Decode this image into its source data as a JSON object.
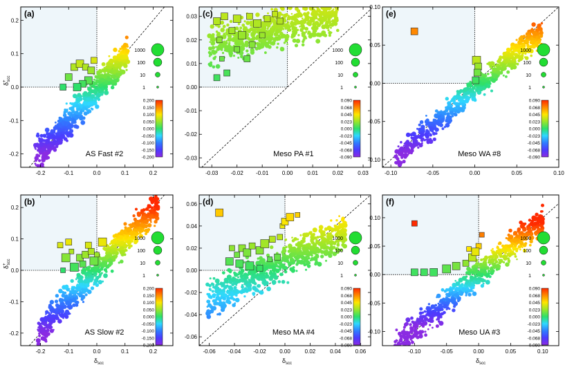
{
  "figure": {
    "axis_label_main": "δ",
    "axis_label_sub": "scc",
    "axis_label_sup_y": "+",
    "size_legend_labels": [
      "1000",
      "100",
      "10",
      "1"
    ],
    "colors": {
      "shade": "#eef6fa",
      "marker_outline": "#2a2a2a",
      "size_legend_fill": "#22dd33",
      "colorbar_stops": [
        "#8a2be2",
        "#4b3bff",
        "#2f7dff",
        "#2fd8ff",
        "#2de06a",
        "#9be62a",
        "#ffe600",
        "#ff8a00",
        "#ff2a00"
      ]
    }
  },
  "chart_data": [
    {
      "type": "scatter",
      "panel_label": "(a)",
      "name": "AS Fast #2",
      "xlim": [
        -0.27,
        0.27
      ],
      "ylim": [
        -0.24,
        0.24
      ],
      "xticks": [
        "-0.2",
        "-0.1",
        "0.0",
        "0.1",
        "0.2"
      ],
      "xtick_values": [
        -0.2,
        -0.1,
        0.0,
        0.1,
        0.2
      ],
      "yticks": [
        "-0.2",
        "-0.1",
        "0.0",
        "0.1",
        "0.2"
      ],
      "ytick_values": [
        -0.2,
        -0.1,
        0.0,
        0.1,
        0.2
      ],
      "show_xlabel": false,
      "show_ylabel": true,
      "colorbar_labels": [
        "0.200",
        "0.150",
        "0.100",
        "0.050",
        "0.000",
        "-0.050",
        "-0.100",
        "-0.150",
        "-0.200"
      ],
      "color_range": [
        -0.2,
        0.2
      ],
      "cloud": {
        "x_range": [
          -0.22,
          0.11
        ],
        "slope": 0.95,
        "intercept": -0.005,
        "spread": 0.035
      },
      "squares": [
        [
          -0.1,
          0.03
        ],
        [
          -0.08,
          0.06
        ],
        [
          -0.06,
          0.07
        ],
        [
          -0.04,
          0.06
        ],
        [
          -0.02,
          0.05
        ],
        [
          -0.01,
          0.08
        ],
        [
          -0.03,
          0.02
        ],
        [
          -0.05,
          0.01
        ],
        [
          -0.07,
          0.0
        ],
        [
          -0.12,
          -0.0
        ]
      ]
    },
    {
      "type": "scatter",
      "panel_label": "(c)",
      "name": "Meso PA #1",
      "xlim": [
        -0.035,
        0.033
      ],
      "ylim": [
        -0.034,
        0.034
      ],
      "xticks": [
        "-0.03",
        "-0.02",
        "-0.01",
        "0.00",
        "0.01",
        "0.02",
        "0.03"
      ],
      "xtick_values": [
        -0.03,
        -0.02,
        -0.01,
        0.0,
        0.01,
        0.02,
        0.03
      ],
      "yticks": [
        "-0.03",
        "-0.02",
        "-0.01",
        "0.00",
        "0.01",
        "0.02",
        "0.03"
      ],
      "ytick_values": [
        -0.03,
        -0.02,
        -0.01,
        0.0,
        0.01,
        0.02,
        0.03
      ],
      "show_xlabel": false,
      "show_ylabel": false,
      "colorbar_labels": [
        "0.090",
        "0.068",
        "0.045",
        "0.023",
        "0.000",
        "-0.023",
        "-0.045",
        "-0.068",
        "-0.090"
      ],
      "color_range": [
        -0.09,
        0.09
      ],
      "cloud": {
        "x_range": [
          -0.031,
          0.02
        ],
        "slope": 0.3,
        "intercept": 0.026,
        "spread": 0.006
      },
      "squares": [
        [
          -0.028,
          0.028
        ],
        [
          -0.025,
          0.03
        ],
        [
          -0.02,
          0.029
        ],
        [
          -0.015,
          0.03
        ],
        [
          -0.012,
          0.027
        ],
        [
          -0.008,
          0.029
        ],
        [
          -0.005,
          0.031
        ],
        [
          -0.022,
          0.024
        ],
        [
          -0.027,
          0.02
        ],
        [
          -0.026,
          0.012
        ],
        [
          -0.024,
          0.006
        ],
        [
          -0.02,
          0.016
        ],
        [
          -0.018,
          0.022
        ],
        [
          -0.014,
          0.018
        ],
        [
          -0.01,
          0.022
        ],
        [
          -0.016,
          0.012
        ],
        [
          -0.028,
          0.004
        ],
        [
          -0.003,
          0.028
        ]
      ]
    },
    {
      "type": "scatter",
      "panel_label": "(e)",
      "name": "Meso WA #8",
      "xlim": [
        -0.11,
        0.1
      ],
      "ylim": [
        -0.11,
        0.1
      ],
      "xticks": [
        "-0.10",
        "-0.05",
        "0.00",
        "0.05",
        "0.10"
      ],
      "xtick_values": [
        -0.1,
        -0.05,
        0.0,
        0.05,
        0.1
      ],
      "yticks": [
        "-0.10",
        "-0.05",
        "0.00",
        "0.05",
        "0.10"
      ],
      "ytick_values": [
        -0.1,
        -0.05,
        0.0,
        0.05,
        0.1
      ],
      "show_xlabel": false,
      "show_ylabel": false,
      "colorbar_labels": [
        "0.090",
        "0.068",
        "0.045",
        "0.023",
        "0.000",
        "-0.023",
        "-0.045",
        "-0.068",
        "-0.090"
      ],
      "color_range": [
        -0.09,
        0.09
      ],
      "cloud": {
        "x_range": [
          -0.095,
          0.08
        ],
        "slope": 0.95,
        "intercept": -0.008,
        "spread": 0.012
      },
      "squares": [
        [
          -0.072,
          0.068
        ],
        [
          0.002,
          0.03
        ],
        [
          0.004,
          0.022
        ],
        [
          0.003,
          0.014
        ],
        [
          0.001,
          0.004
        ]
      ]
    },
    {
      "type": "scatter",
      "panel_label": "(b)",
      "name": "AS Slow #2",
      "xlim": [
        -0.27,
        0.27
      ],
      "ylim": [
        -0.24,
        0.24
      ],
      "xticks": [
        "-0.2",
        "-0.1",
        "0.0",
        "0.1",
        "0.2"
      ],
      "xtick_values": [
        -0.2,
        -0.1,
        0.0,
        0.1,
        0.2
      ],
      "yticks": [
        "-0.2",
        "-0.1",
        "0.0",
        "0.1",
        "0.2"
      ],
      "ytick_values": [
        -0.2,
        -0.1,
        0.0,
        0.1,
        0.2
      ],
      "show_xlabel": true,
      "show_ylabel": true,
      "colorbar_labels": [
        "0.200",
        "0.150",
        "0.100",
        "0.050",
        "0.000",
        "-0.050",
        "-0.100",
        "-0.150",
        "-0.200"
      ],
      "color_range": [
        -0.2,
        0.2
      ],
      "cloud": {
        "x_range": [
          -0.21,
          0.22
        ],
        "slope": 0.95,
        "intercept": 0.0,
        "spread": 0.035
      },
      "squares": [
        [
          -0.13,
          0.08
        ],
        [
          -0.1,
          0.09
        ],
        [
          -0.09,
          0.06
        ],
        [
          -0.06,
          0.04
        ],
        [
          -0.04,
          0.05
        ],
        [
          -0.02,
          0.06
        ],
        [
          -0.01,
          0.03
        ],
        [
          -0.05,
          0.02
        ],
        [
          -0.08,
          0.01
        ],
        [
          -0.12,
          -0.0
        ],
        [
          -0.03,
          0.08
        ],
        [
          0.0,
          0.05
        ],
        [
          0.02,
          0.09
        ],
        [
          -0.11,
          0.04
        ]
      ]
    },
    {
      "type": "scatter",
      "panel_label": "(d)",
      "name": "Meso MA #4",
      "xlim": [
        -0.068,
        0.068
      ],
      "ylim": [
        -0.068,
        0.068
      ],
      "xticks": [
        "-0.06",
        "-0.04",
        "-0.02",
        "0.00",
        "0.02",
        "0.04",
        "0.06"
      ],
      "xtick_values": [
        -0.06,
        -0.04,
        -0.02,
        0.0,
        0.02,
        0.04,
        0.06
      ],
      "yticks": [
        "-0.06",
        "-0.04",
        "-0.02",
        "0.00",
        "0.02",
        "0.04",
        "0.06"
      ],
      "ytick_values": [
        -0.06,
        -0.04,
        -0.02,
        0.0,
        0.02,
        0.04,
        0.06
      ],
      "show_xlabel": true,
      "show_ylabel": false,
      "colorbar_labels": [
        "0.090",
        "0.068",
        "0.045",
        "0.023",
        "0.000",
        "-0.023",
        "-0.045",
        "-0.068",
        "-0.090"
      ],
      "color_range": [
        -0.09,
        0.09
      ],
      "cloud": {
        "x_range": [
          -0.062,
          0.048
        ],
        "slope": 0.55,
        "intercept": 0.008,
        "spread": 0.012
      },
      "squares": [
        [
          -0.052,
          0.052
        ],
        [
          -0.042,
          0.02
        ],
        [
          -0.038,
          0.014
        ],
        [
          -0.034,
          0.02
        ],
        [
          -0.03,
          0.016
        ],
        [
          -0.026,
          0.022
        ],
        [
          -0.02,
          0.018
        ],
        [
          -0.016,
          0.024
        ],
        [
          -0.01,
          0.028
        ],
        [
          -0.004,
          0.03
        ],
        [
          -0.002,
          0.04
        ],
        [
          0.0,
          0.044
        ],
        [
          0.004,
          0.048
        ],
        [
          0.01,
          0.05
        ],
        [
          -0.044,
          0.008
        ],
        [
          -0.036,
          0.006
        ],
        [
          -0.028,
          0.004
        ],
        [
          -0.02,
          0.002
        ],
        [
          -0.006,
          0.012
        ],
        [
          -0.012,
          0.01
        ]
      ]
    },
    {
      "type": "scatter",
      "panel_label": "(f)",
      "name": "Meso UA #3",
      "xlim": [
        -0.15,
        0.125
      ],
      "ylim": [
        -0.125,
        0.14
      ],
      "xticks": [
        "-0.10",
        "-0.05",
        "0.00",
        "0.05",
        "0.10"
      ],
      "xtick_values": [
        -0.1,
        -0.05,
        0.0,
        0.05,
        0.1
      ],
      "yticks": [
        "-0.10",
        "-0.05",
        "0.00",
        "0.05",
        "0.10"
      ],
      "ytick_values": [
        -0.1,
        -0.05,
        0.0,
        0.05,
        0.1
      ],
      "show_xlabel": true,
      "show_ylabel": false,
      "colorbar_labels": [
        "0.090",
        "0.068",
        "0.045",
        "0.023",
        "0.000",
        "-0.023",
        "-0.045",
        "-0.068",
        "-0.090"
      ],
      "color_range": [
        -0.09,
        0.09
      ],
      "cloud": {
        "x_range": [
          -0.13,
          0.1
        ],
        "slope": 0.95,
        "intercept": 0.0,
        "spread": 0.018
      },
      "squares": [
        [
          -0.1,
          0.09
        ],
        [
          -0.1,
          0.004
        ],
        [
          -0.085,
          0.004
        ],
        [
          -0.07,
          0.004
        ],
        [
          -0.05,
          0.01
        ],
        [
          -0.035,
          0.015
        ],
        [
          -0.02,
          0.02
        ],
        [
          -0.01,
          0.03
        ],
        [
          0.0,
          0.05
        ],
        [
          0.005,
          0.07
        ],
        [
          -0.015,
          0.045
        ],
        [
          -0.005,
          0.04
        ]
      ]
    }
  ]
}
